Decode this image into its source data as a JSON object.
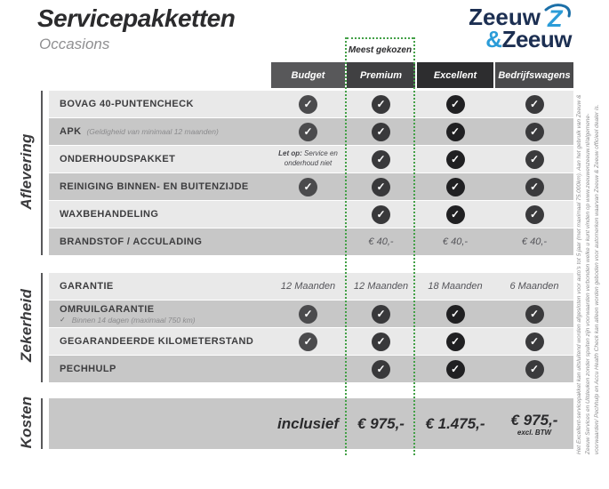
{
  "page": {
    "title": "Servicepakketten",
    "subtitle": "Occasions"
  },
  "logo": {
    "line1": "Zeeuw",
    "amp": "&",
    "line2": "Zeeuw"
  },
  "badge": {
    "label": "Meest gekozen"
  },
  "icons": {
    "check": "✓"
  },
  "colors": {
    "accent_green": "#43a047",
    "logo_navy": "#1c2f52",
    "logo_blue": "#2b9cd8",
    "row_light": "#e9e9e9",
    "row_dark": "#c7c7c7"
  },
  "columns": [
    {
      "label": "Budget",
      "header_color": "#58585a",
      "check_color": "#4b4b4d"
    },
    {
      "label": "Premium",
      "header_color": "#404042",
      "check_color": "#39393b",
      "highlight": true
    },
    {
      "label": "Excellent",
      "header_color": "#2d2d2f",
      "check_color": "#202022"
    },
    {
      "label": "Bedrijfswagens",
      "header_color": "#4a4a4c",
      "check_color": "#3a3a3c"
    }
  ],
  "sections": [
    {
      "name": "Aflevering",
      "rows": [
        {
          "label": "BOVAG 40-PUNTENCHECK",
          "cells": [
            {
              "type": "check"
            },
            {
              "type": "check"
            },
            {
              "type": "check"
            },
            {
              "type": "check"
            }
          ]
        },
        {
          "label": "APK",
          "note_inline": "(Geldigheid van minimaal 12 maanden)",
          "cells": [
            {
              "type": "check"
            },
            {
              "type": "check"
            },
            {
              "type": "check"
            },
            {
              "type": "check"
            }
          ]
        },
        {
          "label": "ONDERHOUDSPAKKET",
          "cells": [
            {
              "type": "note",
              "bold": "Let op:",
              "text": "Service en onderhoud niet"
            },
            {
              "type": "check"
            },
            {
              "type": "check"
            },
            {
              "type": "check"
            }
          ]
        },
        {
          "label": "REINIGING BINNEN- EN BUITENZIJDE",
          "cells": [
            {
              "type": "check"
            },
            {
              "type": "check"
            },
            {
              "type": "check"
            },
            {
              "type": "check"
            }
          ]
        },
        {
          "label": "WAXBEHANDELING",
          "cells": [
            {
              "type": "empty"
            },
            {
              "type": "check"
            },
            {
              "type": "check"
            },
            {
              "type": "check"
            }
          ]
        },
        {
          "label": "BRANDSTOF / ACCULADING",
          "cells": [
            {
              "type": "empty"
            },
            {
              "type": "text",
              "text": "€ 40,-"
            },
            {
              "type": "text",
              "text": "€ 40,-"
            },
            {
              "type": "text",
              "text": "€ 40,-"
            }
          ]
        }
      ]
    },
    {
      "name": "Zekerheid",
      "rows": [
        {
          "label": "GARANTIE",
          "cells": [
            {
              "type": "text",
              "text": "12 Maanden"
            },
            {
              "type": "text",
              "text": "12 Maanden"
            },
            {
              "type": "text",
              "text": "18 Maanden"
            },
            {
              "type": "text",
              "text": "6 Maanden"
            }
          ]
        },
        {
          "label": "OMRUILGARANTIE",
          "note_below": "Binnen 14 dagen (maximaal 750 km)",
          "cells": [
            {
              "type": "check"
            },
            {
              "type": "check"
            },
            {
              "type": "check"
            },
            {
              "type": "check"
            }
          ]
        },
        {
          "label": "GEGARANDEERDE KILOMETERSTAND",
          "cells": [
            {
              "type": "check"
            },
            {
              "type": "check"
            },
            {
              "type": "check"
            },
            {
              "type": "check"
            }
          ]
        },
        {
          "label": "PECHHULP",
          "cells": [
            {
              "type": "empty"
            },
            {
              "type": "check"
            },
            {
              "type": "check"
            },
            {
              "type": "check"
            }
          ]
        }
      ]
    }
  ],
  "kosten": {
    "name": "Kosten",
    "cells": [
      {
        "text": "inclusief"
      },
      {
        "text": "€ 975,-"
      },
      {
        "text": "€ 1.475,-"
      },
      {
        "text": "€ 975,-",
        "sub": "excl. BTW"
      }
    ]
  },
  "disclaimer": "Het Excellent-servicepakket kan uitsluitend worden afgesloten voor auto's tot 5 jaar (met maximaal 75.000km). Aan het gebruik van Zeeuw & Zeeuw Services en Uitdeuken zonder spuiten zijn voorwaarden verbonden welke u kunt vinden op www.zeeuwenzeeuw.nl/algemene-voorwaarden/ Pechhulp en Accu Health Check kan alleen worden geboden voor automerken waarvan Zeeuw & Zeeuw officieel dealer is."
}
